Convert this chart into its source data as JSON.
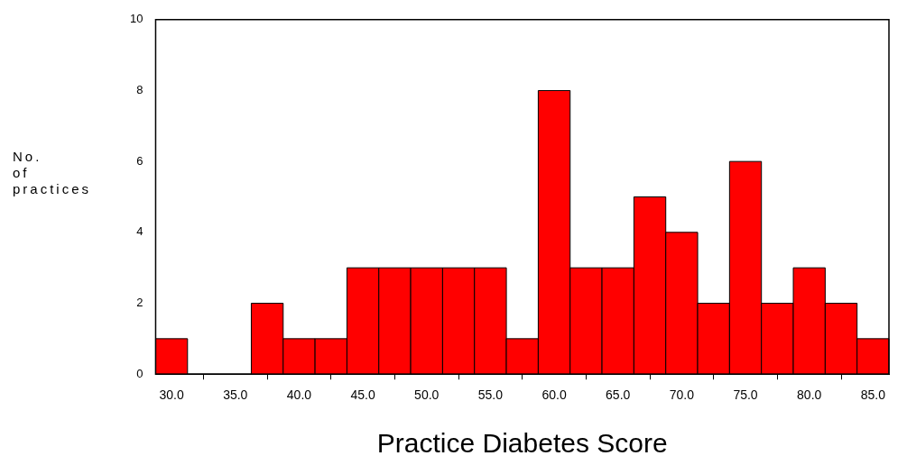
{
  "chart_data": {
    "type": "histogram",
    "xlabel": "Practice Diabetes Score",
    "ylabel": "No. of practices",
    "bins": [
      28.75,
      31.25,
      33.75,
      36.25,
      38.75,
      41.25,
      43.75,
      46.25,
      48.75,
      51.25,
      53.75,
      56.25,
      58.75,
      61.25,
      63.75,
      66.25,
      68.75,
      71.25,
      73.75,
      76.25,
      78.75,
      81.25,
      83.75,
      86.25
    ],
    "values": [
      1,
      0,
      0,
      2,
      1,
      1,
      3,
      3,
      3,
      3,
      3,
      1,
      8,
      3,
      3,
      5,
      4,
      2,
      6,
      2,
      3,
      2,
      1
    ],
    "color": "#ff0000",
    "xlim": [
      28.75,
      86.25
    ],
    "xticks": [
      {
        "value": 30,
        "label": "30.0"
      },
      {
        "value": 35,
        "label": "35.0"
      },
      {
        "value": 40,
        "label": "40.0"
      },
      {
        "value": 45,
        "label": "45.0"
      },
      {
        "value": 50,
        "label": "50.0"
      },
      {
        "value": 55,
        "label": "55.0"
      },
      {
        "value": 60,
        "label": "60.0"
      },
      {
        "value": 65,
        "label": "65.0"
      },
      {
        "value": 70,
        "label": "70.0"
      },
      {
        "value": 75,
        "label": "75.0"
      },
      {
        "value": 80,
        "label": "80.0"
      },
      {
        "value": 85,
        "label": "85.0"
      }
    ],
    "ylim": [
      0,
      10
    ],
    "yticks": [
      0,
      2,
      4,
      6,
      8,
      10
    ],
    "grid": false,
    "legend": false
  }
}
